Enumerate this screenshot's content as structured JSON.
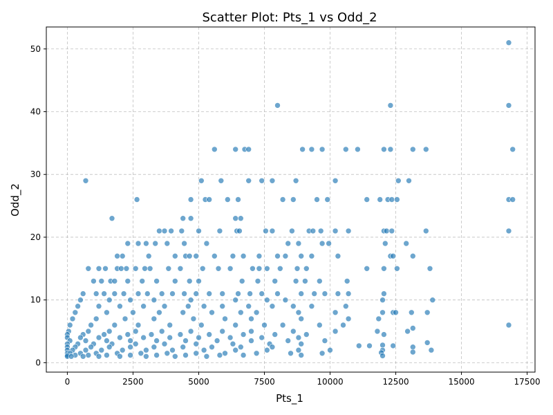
{
  "chart_data": {
    "type": "scatter",
    "title": "Scatter Plot: Pts_1 vs Odd_2",
    "xlabel": "Pts_1",
    "ylabel": "Odd_2",
    "xlim": [
      -800,
      17800
    ],
    "ylim": [
      -1.5,
      53.5
    ],
    "xticks": [
      0,
      2500,
      5000,
      7500,
      10000,
      12500,
      15000,
      17500
    ],
    "yticks": [
      0,
      10,
      20,
      30,
      40,
      50
    ],
    "grid": true,
    "legend": "none",
    "point_color": "#1f77b4",
    "points": [
      [
        16800,
        51
      ],
      [
        16800,
        41
      ],
      [
        8000,
        41
      ],
      [
        12300,
        41
      ],
      [
        16950,
        34
      ],
      [
        16800,
        26
      ],
      [
        16950,
        26
      ],
      [
        16800,
        21
      ],
      [
        16800,
        6
      ],
      [
        700,
        29
      ],
      [
        2650,
        26
      ],
      [
        1700,
        23
      ],
      [
        5100,
        29
      ],
      [
        5850,
        29
      ],
      [
        6900,
        29
      ],
      [
        7400,
        29
      ],
      [
        7800,
        29
      ],
      [
        8700,
        29
      ],
      [
        10200,
        29
      ],
      [
        12600,
        29
      ],
      [
        13000,
        29
      ],
      [
        5600,
        34
      ],
      [
        6400,
        34
      ],
      [
        6750,
        34
      ],
      [
        6900,
        34
      ],
      [
        8950,
        34
      ],
      [
        9300,
        34
      ],
      [
        9700,
        34
      ],
      [
        10600,
        34
      ],
      [
        11050,
        34
      ],
      [
        12050,
        34
      ],
      [
        12300,
        34
      ],
      [
        13150,
        34
      ],
      [
        13650,
        34
      ],
      [
        4700,
        26
      ],
      [
        5250,
        26
      ],
      [
        5400,
        26
      ],
      [
        6100,
        26
      ],
      [
        6500,
        26
      ],
      [
        8200,
        26
      ],
      [
        8600,
        26
      ],
      [
        9500,
        26
      ],
      [
        9900,
        26
      ],
      [
        11400,
        26
      ],
      [
        11900,
        26
      ],
      [
        12200,
        26
      ],
      [
        12350,
        26
      ],
      [
        12550,
        26
      ],
      [
        4400,
        23
      ],
      [
        4700,
        23
      ],
      [
        6400,
        23
      ],
      [
        6600,
        23
      ],
      [
        3500,
        21
      ],
      [
        3700,
        21
      ],
      [
        3950,
        21
      ],
      [
        4350,
        21
      ],
      [
        5000,
        21
      ],
      [
        5800,
        21
      ],
      [
        6450,
        21
      ],
      [
        6550,
        21
      ],
      [
        7550,
        21
      ],
      [
        7800,
        21
      ],
      [
        8550,
        21
      ],
      [
        9200,
        21
      ],
      [
        9350,
        21
      ],
      [
        9650,
        21
      ],
      [
        10200,
        21
      ],
      [
        10700,
        21
      ],
      [
        12050,
        21
      ],
      [
        12150,
        21
      ],
      [
        12350,
        21
      ],
      [
        13650,
        21
      ],
      [
        2300,
        19
      ],
      [
        2700,
        19
      ],
      [
        3000,
        19
      ],
      [
        3350,
        19
      ],
      [
        3800,
        19
      ],
      [
        4450,
        19
      ],
      [
        5300,
        19
      ],
      [
        8400,
        19
      ],
      [
        8800,
        19
      ],
      [
        9700,
        19
      ],
      [
        9950,
        19
      ],
      [
        12100,
        19
      ],
      [
        12900,
        19
      ],
      [
        1900,
        17
      ],
      [
        2100,
        17
      ],
      [
        3100,
        17
      ],
      [
        4100,
        17
      ],
      [
        4500,
        17
      ],
      [
        4650,
        17
      ],
      [
        4900,
        17
      ],
      [
        5600,
        17
      ],
      [
        6300,
        17
      ],
      [
        6700,
        17
      ],
      [
        7300,
        17
      ],
      [
        8000,
        17
      ],
      [
        8300,
        17
      ],
      [
        8900,
        17
      ],
      [
        9300,
        17
      ],
      [
        10300,
        17
      ],
      [
        12300,
        17
      ],
      [
        12400,
        17
      ],
      [
        13150,
        17
      ],
      [
        800,
        15
      ],
      [
        1200,
        15
      ],
      [
        1450,
        15
      ],
      [
        1900,
        15
      ],
      [
        2050,
        15
      ],
      [
        2250,
        15
      ],
      [
        2600,
        15
      ],
      [
        2950,
        15
      ],
      [
        3150,
        15
      ],
      [
        3850,
        15
      ],
      [
        4300,
        15
      ],
      [
        5150,
        15
      ],
      [
        5750,
        15
      ],
      [
        6200,
        15
      ],
      [
        7050,
        15
      ],
      [
        7300,
        15
      ],
      [
        7600,
        15
      ],
      [
        8100,
        15
      ],
      [
        8750,
        15
      ],
      [
        9100,
        15
      ],
      [
        11400,
        15
      ],
      [
        12050,
        15
      ],
      [
        12550,
        15
      ],
      [
        13800,
        15
      ],
      [
        1000,
        13
      ],
      [
        1300,
        13
      ],
      [
        1650,
        13
      ],
      [
        1800,
        13
      ],
      [
        2300,
        13
      ],
      [
        2850,
        13
      ],
      [
        3400,
        13
      ],
      [
        4100,
        13
      ],
      [
        4650,
        13
      ],
      [
        5000,
        13
      ],
      [
        6650,
        13
      ],
      [
        7250,
        13
      ],
      [
        7900,
        13
      ],
      [
        8700,
        13
      ],
      [
        9050,
        13
      ],
      [
        9600,
        13
      ],
      [
        10650,
        13
      ],
      [
        600,
        11
      ],
      [
        1100,
        11
      ],
      [
        1400,
        11
      ],
      [
        1800,
        11
      ],
      [
        2150,
        11
      ],
      [
        2700,
        11
      ],
      [
        3050,
        11
      ],
      [
        3600,
        11
      ],
      [
        4000,
        11
      ],
      [
        4450,
        11
      ],
      [
        4900,
        11
      ],
      [
        5400,
        11
      ],
      [
        5900,
        11
      ],
      [
        6500,
        11
      ],
      [
        6950,
        11
      ],
      [
        7400,
        11
      ],
      [
        8000,
        11
      ],
      [
        8900,
        11
      ],
      [
        9400,
        11
      ],
      [
        9800,
        11
      ],
      [
        10300,
        11
      ],
      [
        10700,
        11
      ],
      [
        12050,
        11
      ],
      [
        500,
        10
      ],
      [
        1600,
        10
      ],
      [
        2400,
        10
      ],
      [
        3300,
        10
      ],
      [
        4700,
        10
      ],
      [
        6400,
        10
      ],
      [
        7600,
        10
      ],
      [
        8300,
        10
      ],
      [
        12000,
        10
      ],
      [
        13900,
        10
      ],
      [
        400,
        9
      ],
      [
        1200,
        9
      ],
      [
        2000,
        9
      ],
      [
        2900,
        9
      ],
      [
        3700,
        9
      ],
      [
        4600,
        9
      ],
      [
        5200,
        9
      ],
      [
        5900,
        9
      ],
      [
        6900,
        9
      ],
      [
        7800,
        9
      ],
      [
        8600,
        9
      ],
      [
        9300,
        9
      ],
      [
        10600,
        9
      ],
      [
        300,
        8
      ],
      [
        1500,
        8
      ],
      [
        2500,
        8
      ],
      [
        3500,
        8
      ],
      [
        4400,
        8
      ],
      [
        5500,
        8
      ],
      [
        6600,
        8
      ],
      [
        7200,
        8
      ],
      [
        8800,
        8
      ],
      [
        10200,
        8
      ],
      [
        12000,
        8
      ],
      [
        12400,
        8
      ],
      [
        12500,
        8
      ],
      [
        13100,
        8
      ],
      [
        13700,
        8
      ],
      [
        200,
        7
      ],
      [
        1100,
        7
      ],
      [
        2200,
        7
      ],
      [
        3300,
        7
      ],
      [
        4800,
        7
      ],
      [
        6000,
        7
      ],
      [
        7000,
        7
      ],
      [
        8900,
        7
      ],
      [
        10700,
        7
      ],
      [
        11850,
        7
      ],
      [
        100,
        6
      ],
      [
        900,
        6
      ],
      [
        1800,
        6
      ],
      [
        2700,
        6
      ],
      [
        3900,
        6
      ],
      [
        5100,
        6
      ],
      [
        6400,
        6
      ],
      [
        7500,
        6
      ],
      [
        8200,
        6
      ],
      [
        9600,
        6
      ],
      [
        10500,
        6
      ],
      [
        50,
        5
      ],
      [
        800,
        5
      ],
      [
        1600,
        5
      ],
      [
        2600,
        5
      ],
      [
        3600,
        5
      ],
      [
        4700,
        5
      ],
      [
        5900,
        5
      ],
      [
        7000,
        5
      ],
      [
        8600,
        5
      ],
      [
        10200,
        5
      ],
      [
        11800,
        5
      ],
      [
        12950,
        5
      ],
      [
        13150,
        5.5
      ],
      [
        0,
        4.5
      ],
      [
        600,
        4.5
      ],
      [
        1400,
        4.5
      ],
      [
        2300,
        4.5
      ],
      [
        3200,
        4.5
      ],
      [
        4300,
        4.5
      ],
      [
        5400,
        4.5
      ],
      [
        6700,
        4.5
      ],
      [
        7900,
        4.5
      ],
      [
        9100,
        4.5
      ],
      [
        12050,
        4.5
      ],
      [
        0,
        4
      ],
      [
        500,
        4
      ],
      [
        1200,
        4
      ],
      [
        2000,
        4
      ],
      [
        2900,
        4
      ],
      [
        3900,
        4
      ],
      [
        5000,
        4
      ],
      [
        6200,
        4
      ],
      [
        7400,
        4
      ],
      [
        8800,
        4
      ],
      [
        100,
        3.5
      ],
      [
        700,
        3.5
      ],
      [
        1500,
        3.5
      ],
      [
        2400,
        3.5
      ],
      [
        3400,
        3.5
      ],
      [
        4500,
        3.5
      ],
      [
        5700,
        3.5
      ],
      [
        7000,
        3.5
      ],
      [
        8400,
        3.5
      ],
      [
        9800,
        3.5
      ],
      [
        13700,
        3.2
      ],
      [
        0,
        3
      ],
      [
        400,
        3
      ],
      [
        1000,
        3
      ],
      [
        1700,
        3
      ],
      [
        2600,
        3
      ],
      [
        3700,
        3
      ],
      [
        4900,
        3
      ],
      [
        6300,
        3
      ],
      [
        7700,
        3
      ],
      [
        8900,
        3
      ],
      [
        12000,
        2.8
      ],
      [
        0,
        2.5
      ],
      [
        300,
        2.5
      ],
      [
        900,
        2.5
      ],
      [
        1600,
        2.5
      ],
      [
        2400,
        2.5
      ],
      [
        3300,
        2.5
      ],
      [
        4400,
        2.5
      ],
      [
        5500,
        2.5
      ],
      [
        6600,
        2.5
      ],
      [
        7800,
        2.5
      ],
      [
        11100,
        2.7
      ],
      [
        11500,
        2.7
      ],
      [
        12400,
        2.7
      ],
      [
        13150,
        2.5
      ],
      [
        0,
        2
      ],
      [
        200,
        2
      ],
      [
        700,
        2
      ],
      [
        1300,
        2
      ],
      [
        2100,
        2
      ],
      [
        3000,
        2
      ],
      [
        4000,
        2
      ],
      [
        5200,
        2
      ],
      [
        6400,
        2
      ],
      [
        7600,
        2
      ],
      [
        8800,
        2
      ],
      [
        10000,
        2
      ],
      [
        12000,
        2
      ],
      [
        13850,
        2
      ],
      [
        0,
        1.5
      ],
      [
        100,
        1.5
      ],
      [
        500,
        1.5
      ],
      [
        1100,
        1.5
      ],
      [
        1900,
        1.5
      ],
      [
        2800,
        1.5
      ],
      [
        3800,
        1.5
      ],
      [
        4900,
        1.5
      ],
      [
        6000,
        1.5
      ],
      [
        7200,
        1.5
      ],
      [
        8500,
        1.5
      ],
      [
        9700,
        1.5
      ],
      [
        11950,
        1.6
      ],
      [
        13150,
        1.7
      ],
      [
        0,
        1.2
      ],
      [
        300,
        1.2
      ],
      [
        800,
        1.2
      ],
      [
        1500,
        1.2
      ],
      [
        2400,
        1.2
      ],
      [
        3400,
        1.2
      ],
      [
        4500,
        1.2
      ],
      [
        5800,
        1.2
      ],
      [
        6700,
        1.2
      ],
      [
        8900,
        1.2
      ],
      [
        12000,
        1.1
      ],
      [
        0,
        1
      ],
      [
        150,
        1
      ],
      [
        600,
        1
      ],
      [
        1200,
        1
      ],
      [
        2000,
        1
      ],
      [
        3000,
        1
      ],
      [
        4100,
        1
      ],
      [
        5300,
        1
      ]
    ]
  }
}
